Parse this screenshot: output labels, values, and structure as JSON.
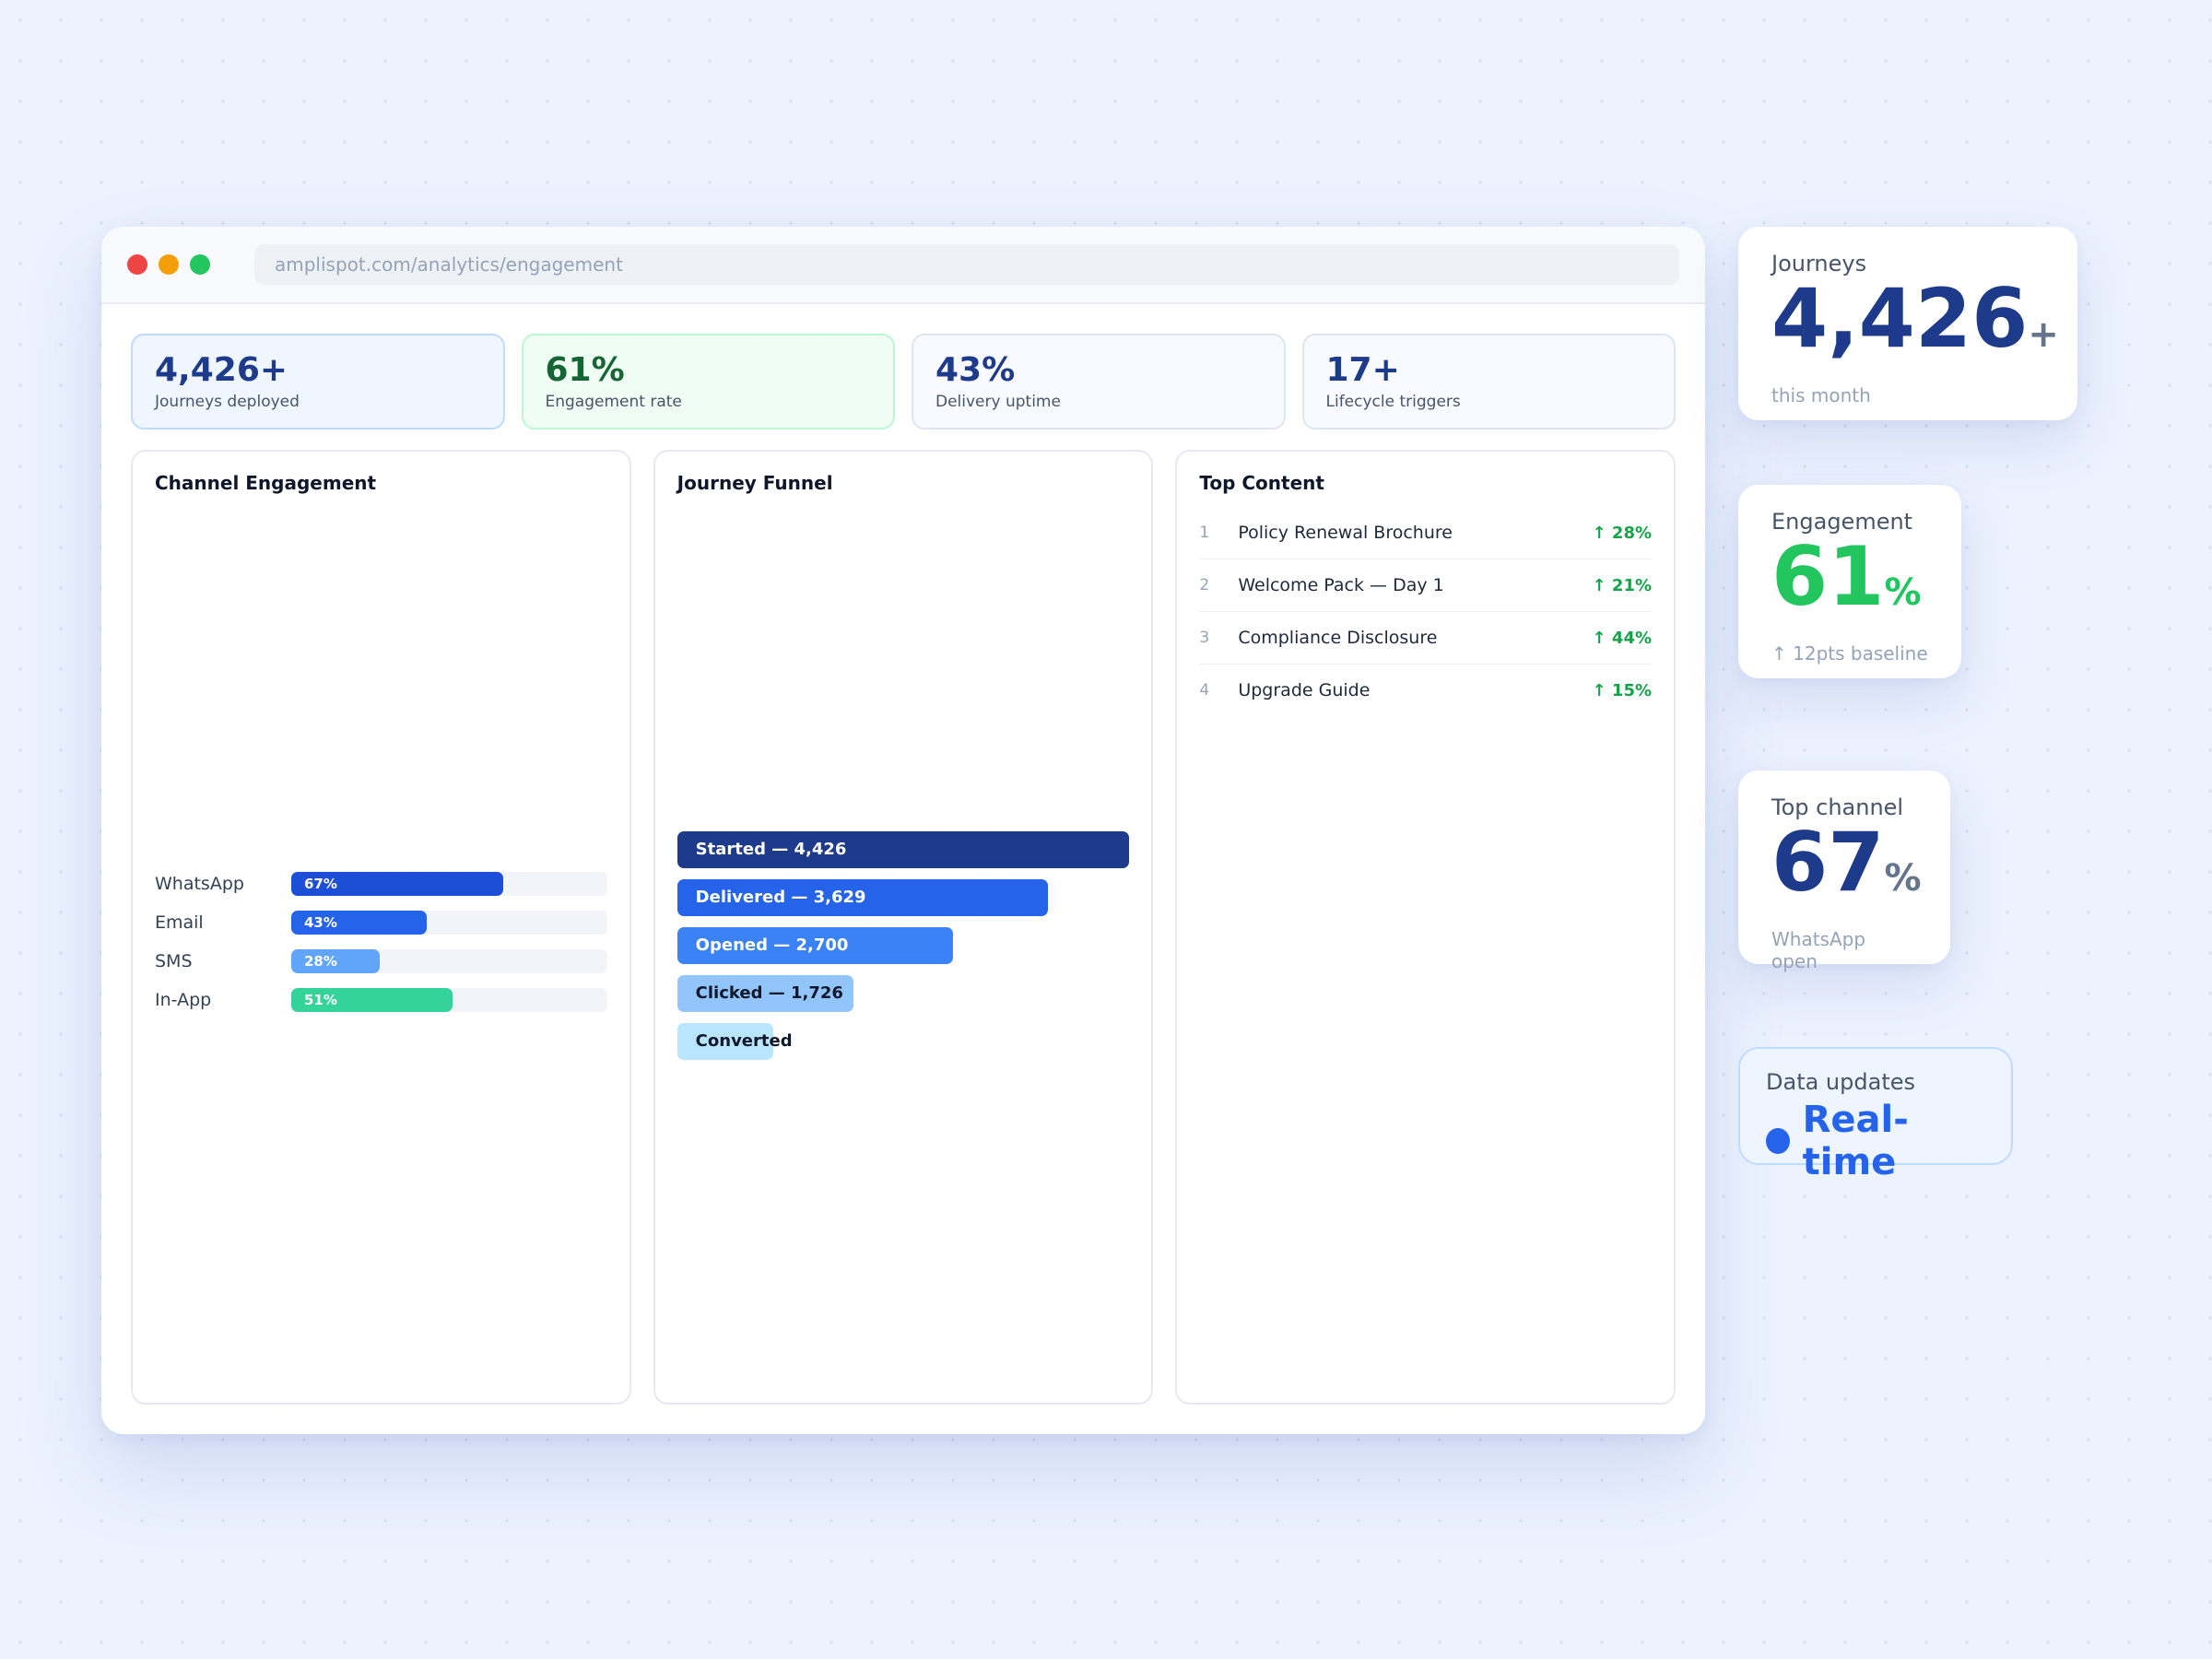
{
  "browser": {
    "url": "amplispot.com/analytics/engagement"
  },
  "kpis": [
    {
      "value": "4,426+",
      "label": "Journeys deployed"
    },
    {
      "value": "61%",
      "label": "Engagement rate"
    },
    {
      "value": "43%",
      "label": "Delivery uptime"
    },
    {
      "value": "17+",
      "label": "Lifecycle triggers"
    }
  ],
  "channel_engagement": {
    "title": "Channel Engagement",
    "rows": [
      {
        "name": "WhatsApp",
        "value": 67,
        "label": "67%",
        "color": "#1d4ed8"
      },
      {
        "name": "Email",
        "value": 43,
        "label": "43%",
        "color": "#2563eb"
      },
      {
        "name": "SMS",
        "value": 28,
        "label": "28%",
        "color": "#60a5fa"
      },
      {
        "name": "In-App",
        "value": 51,
        "label": "51%",
        "color": "#34d399"
      }
    ]
  },
  "journey_funnel": {
    "title": "Journey Funnel",
    "max": 4426,
    "stages": [
      {
        "label": "Started — 4,426",
        "value": 4426,
        "color": "#1e3a8a",
        "text_color": "#ffffff"
      },
      {
        "label": "Delivered — 3,629",
        "value": 3629,
        "color": "#2563eb",
        "text_color": "#ffffff"
      },
      {
        "label": "Opened — 2,700",
        "value": 2700,
        "color": "#3b82f6",
        "text_color": "#ffffff"
      },
      {
        "label": "Clicked — 1,726",
        "value": 1726,
        "color": "#93c5fd",
        "text_color": "#0f172a"
      },
      {
        "label": "Converted",
        "value": 940,
        "color": "#bae6fd",
        "text_color": "#0f172a"
      }
    ]
  },
  "top_content": {
    "title": "Top Content",
    "items": [
      {
        "rank": "1",
        "name": "Policy Renewal Brochure",
        "delta": "↑ 28%"
      },
      {
        "rank": "2",
        "name": "Welcome Pack — Day 1",
        "delta": "↑ 21%"
      },
      {
        "rank": "3",
        "name": "Compliance Disclosure",
        "delta": "↑ 44%"
      },
      {
        "rank": "4",
        "name": "Upgrade Guide",
        "delta": "↑ 15%"
      }
    ]
  },
  "cards": {
    "journeys": {
      "label": "Journeys",
      "value": "4,426",
      "suffix": "+",
      "sub": "this month"
    },
    "engagement": {
      "label": "Engagement",
      "value": "61",
      "suffix": "%",
      "sub": "↑ 12pts baseline"
    },
    "top_channel": {
      "label": "Top channel",
      "value": "67",
      "suffix": "%",
      "sub": "WhatsApp open"
    },
    "data_updates": {
      "label": "Data updates",
      "value": "Real-time"
    }
  }
}
